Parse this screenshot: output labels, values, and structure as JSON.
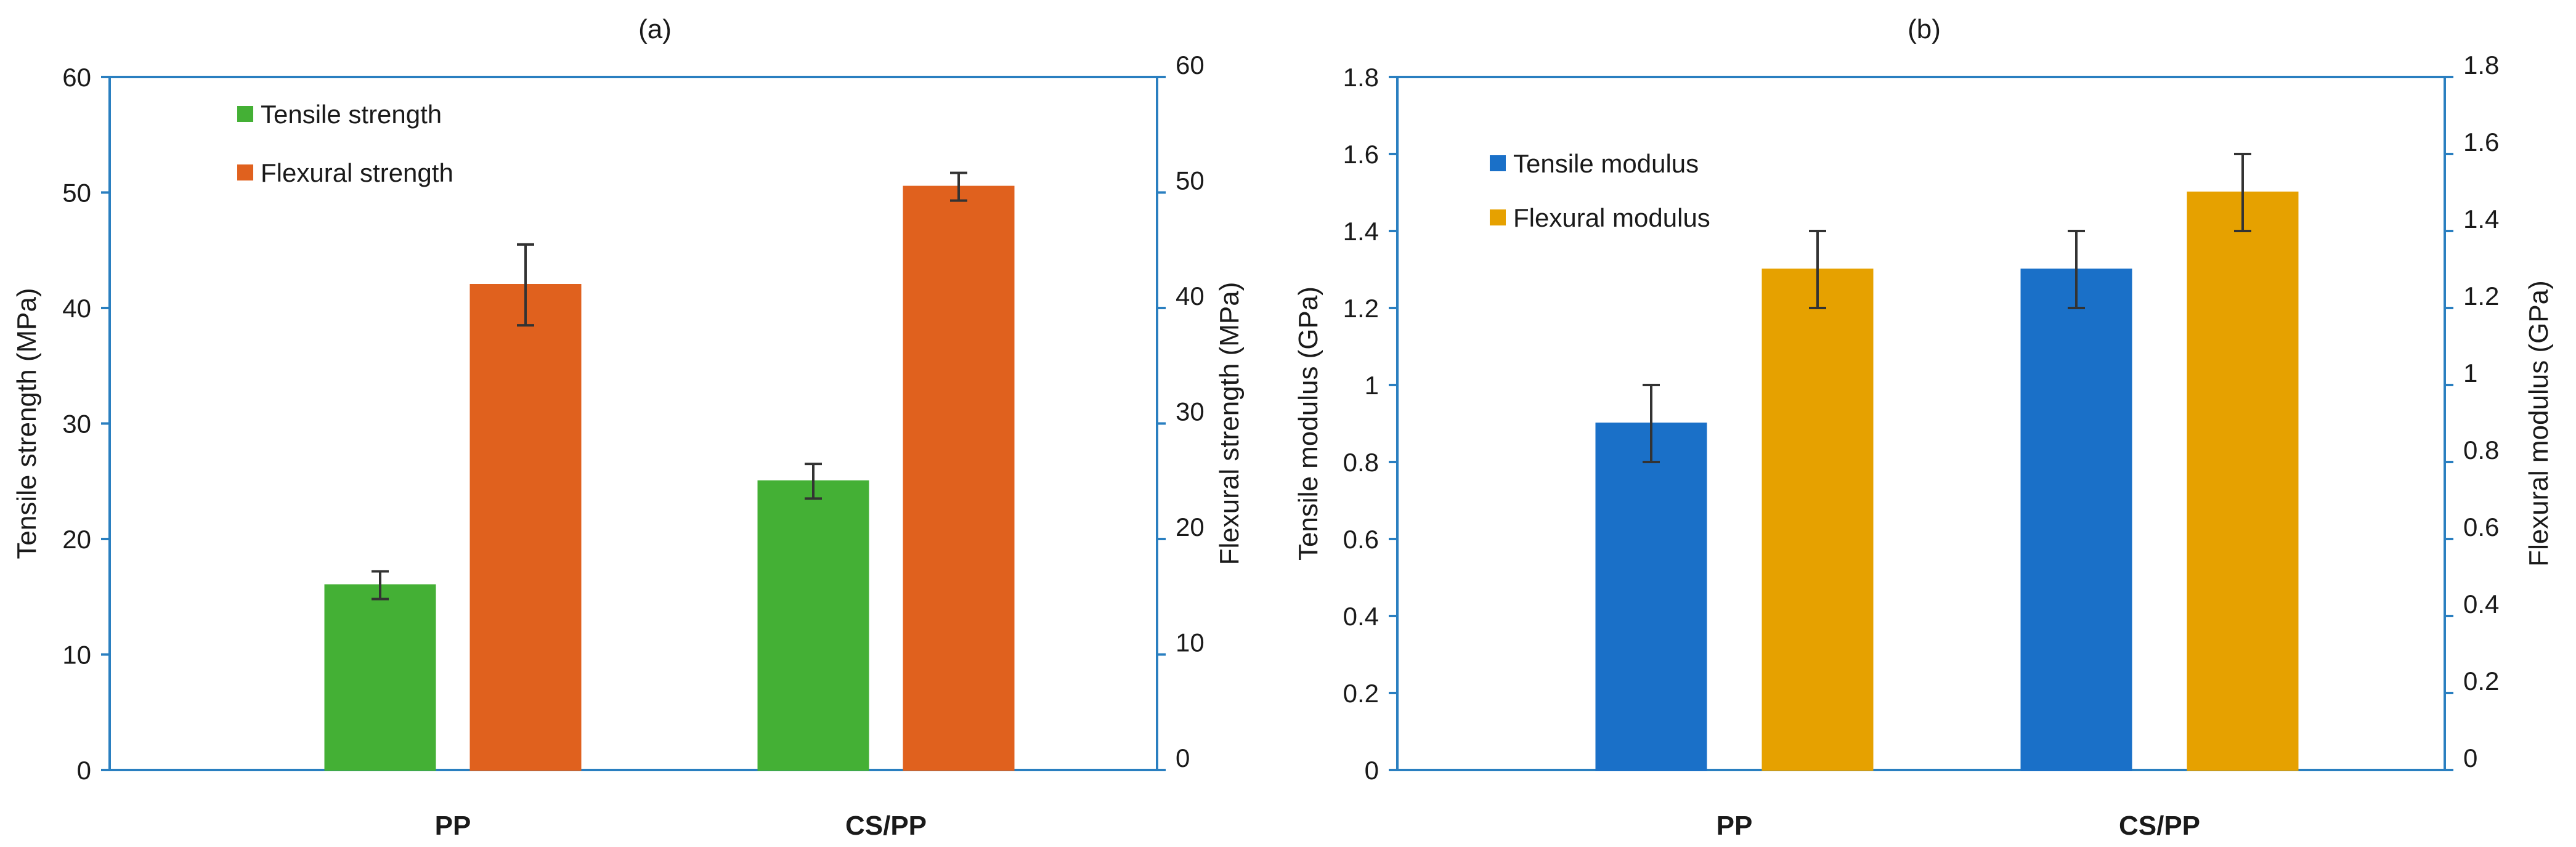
{
  "chart_data": [
    {
      "type": "bar",
      "title": "(a)",
      "categories": [
        "PP",
        "CS/PP"
      ],
      "left_axis": {
        "label": "Tensile strength (MPa)",
        "range": [
          0,
          60
        ],
        "ticks": [
          "0",
          "10",
          "20",
          "30",
          "40",
          "50",
          "60"
        ]
      },
      "right_axis": {
        "label": "Flexural strength (MPa)",
        "range": [
          0,
          60
        ],
        "ticks": [
          "0",
          "10",
          "20",
          "30",
          "40",
          "50",
          "60"
        ]
      },
      "series": [
        {
          "name": "Tensile strength",
          "axis": "left",
          "color": "#44b035",
          "values": [
            16,
            25
          ],
          "errors": [
            1.2,
            1.5
          ]
        },
        {
          "name": "Flexural strength",
          "axis": "right",
          "color": "#e0611e",
          "values": [
            42,
            50.5
          ],
          "errors": [
            3.5,
            1.2
          ]
        }
      ],
      "legend": "top-left",
      "grid": false
    },
    {
      "type": "bar",
      "title": "(b)",
      "categories": [
        "PP",
        "CS/PP"
      ],
      "left_axis": {
        "label": "Tensile modulus (GPa)",
        "range": [
          0,
          1.8
        ],
        "ticks": [
          "0",
          "0.2",
          "0.4",
          "0.6",
          "0.8",
          "1",
          "1.2",
          "1.4",
          "1.6",
          "1.8"
        ]
      },
      "right_axis": {
        "label": "Flexural modulus  (GPa)",
        "range": [
          0,
          1.8
        ],
        "ticks": [
          "0",
          "0.2",
          "0.4",
          "0.6",
          "0.8",
          "1",
          "1.2",
          "1.4",
          "1.6",
          "1.8"
        ]
      },
      "series": [
        {
          "name": "Tensile modulus",
          "axis": "left",
          "color": "#1a70c8",
          "values": [
            0.9,
            1.3
          ],
          "errors": [
            0.1,
            0.1
          ]
        },
        {
          "name": "Flexural modulus",
          "axis": "right",
          "color": "#e6a100",
          "values": [
            1.3,
            1.5
          ],
          "errors": [
            0.1,
            0.1
          ]
        }
      ],
      "legend": "top-left",
      "grid": false
    }
  ],
  "colors": {
    "axis": "#2a7fc0",
    "error_bar": "#333333",
    "text": "#1a1a1a"
  }
}
